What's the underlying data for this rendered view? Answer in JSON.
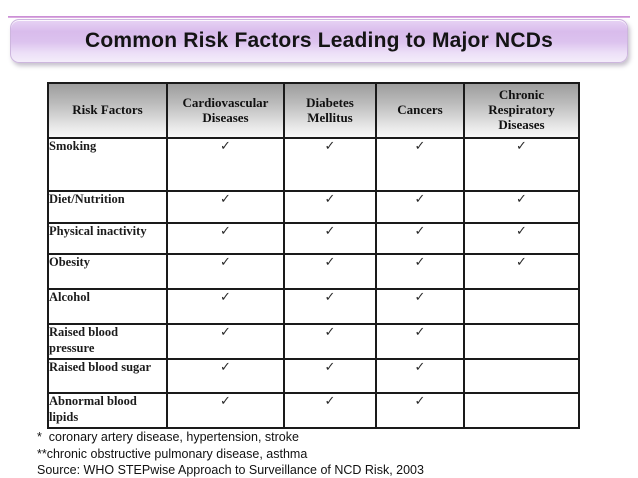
{
  "title": "Common Risk Factors Leading to Major NCDs",
  "table": {
    "columns": [
      "Risk Factors",
      "Cardiovascular Diseases",
      "Diabetes Mellitus",
      "Cancers",
      "Chronic Respiratory Diseases"
    ],
    "check_glyph": "✓",
    "rows": [
      {
        "label": "Smoking",
        "checks": [
          true,
          true,
          true,
          true
        ]
      },
      {
        "label": "Diet/Nutrition",
        "checks": [
          true,
          true,
          true,
          true
        ]
      },
      {
        "label": "Physical inactivity",
        "checks": [
          true,
          true,
          true,
          true
        ]
      },
      {
        "label": "Obesity",
        "checks": [
          true,
          true,
          true,
          true
        ]
      },
      {
        "label": "Alcohol",
        "checks": [
          true,
          true,
          true,
          false
        ]
      },
      {
        "label": "Raised blood pressure",
        "checks": [
          true,
          true,
          true,
          false
        ]
      },
      {
        "label": "Raised blood sugar",
        "checks": [
          true,
          true,
          true,
          false
        ]
      },
      {
        "label": "Abnormal blood lipids",
        "checks": [
          true,
          true,
          true,
          false
        ]
      }
    ]
  },
  "footnotes": [
    "*  coronary artery disease, hypertension, stroke",
    "**chronic obstructive pulmonary disease, asthma",
    "Source: WHO STEPwise Approach to Surveillance of NCD Risk, 2003"
  ],
  "colors": {
    "accent_line": "#c583cf",
    "title_box_mid": "#d9bcec",
    "header_gradient_top": "#9d9d9d",
    "header_gradient_bottom": "#f8f8f8",
    "border": "#1a1a1a",
    "checkmark": "#2a2a2a"
  }
}
